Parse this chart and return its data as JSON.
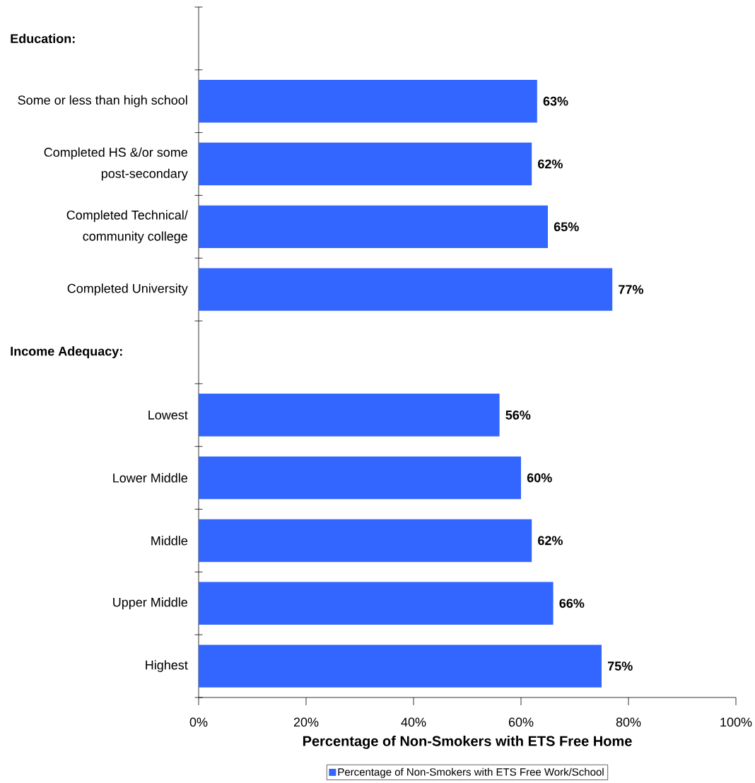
{
  "chart_data": {
    "type": "bar",
    "orientation": "horizontal",
    "xlabel": "Percentage of Non-Smokers with ETS Free Home",
    "categories": [
      null,
      "Some or less than high school",
      "Completed HS &/or some post-secondary",
      "Completed Technical/ community college",
      "Completed University",
      null,
      "Lowest",
      "Lower Middle",
      "Middle",
      "Upper Middle",
      "Highest"
    ],
    "annotations": [
      "Education:",
      "Income Adequacy:"
    ],
    "series": [
      {
        "name": "Percentage of Non-Smokers with ETS Free Work/School",
        "color": "#3366ff",
        "values": [
          null,
          63,
          62,
          65,
          77,
          null,
          56,
          60,
          62,
          66,
          75
        ],
        "value_labels": [
          null,
          "63%",
          "62%",
          "65%",
          "77%",
          null,
          "56%",
          "60%",
          "62%",
          "66%",
          "75%"
        ]
      }
    ],
    "xlim": [
      0,
      100
    ],
    "xticks": [
      {
        "value": 0,
        "label": "0%"
      },
      {
        "value": 20,
        "label": "20%"
      },
      {
        "value": 40,
        "label": "40%"
      },
      {
        "value": 60,
        "label": "60%"
      },
      {
        "value": 80,
        "label": "80%"
      },
      {
        "value": 100,
        "label": "100%"
      }
    ],
    "legend": "bottom"
  }
}
